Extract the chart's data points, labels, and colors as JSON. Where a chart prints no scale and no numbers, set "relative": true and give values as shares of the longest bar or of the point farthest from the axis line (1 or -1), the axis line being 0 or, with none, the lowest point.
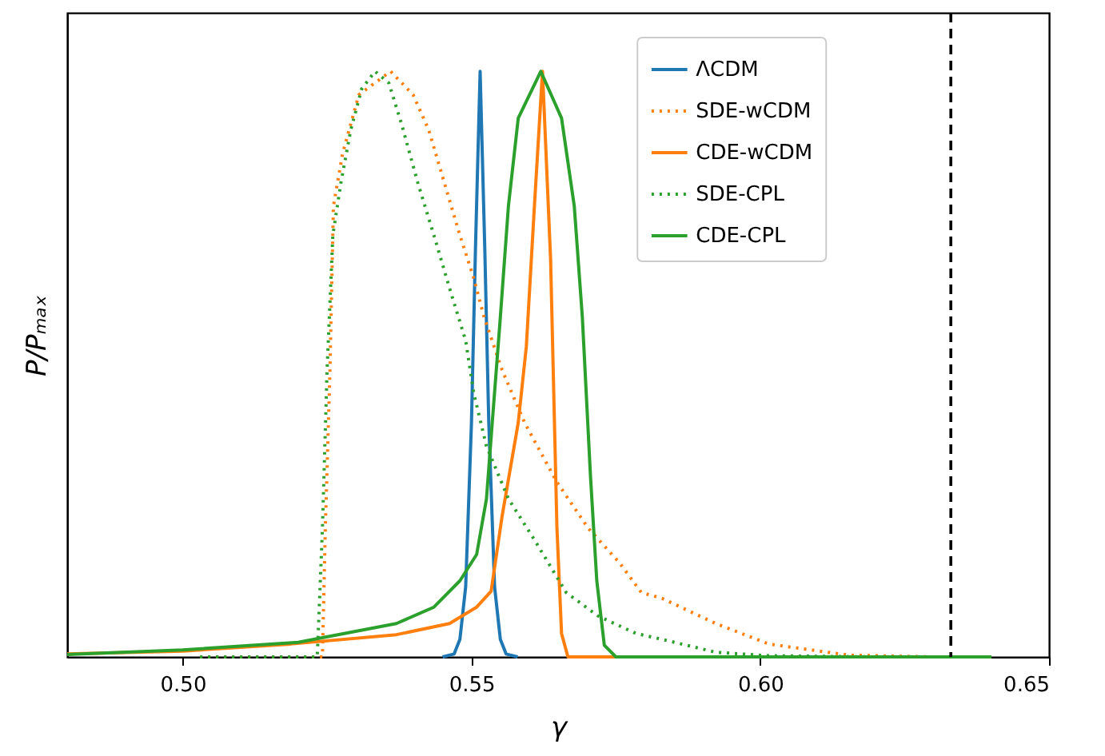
{
  "chart_data": {
    "type": "line",
    "relative": true,
    "xlabel": "γ",
    "ylabel": "P/Pₘₐₓ",
    "xlim": [
      0.48,
      0.65
    ],
    "xticks": [
      {
        "value": 0.5,
        "label": "0.50"
      },
      {
        "value": 0.55,
        "label": "0.55"
      },
      {
        "value": 0.6,
        "label": "0.60"
      },
      {
        "value": 0.65,
        "label": "0.65"
      }
    ],
    "grid": false,
    "legend": "top right",
    "marker": "none",
    "ref_lines": [
      {
        "axis": "x",
        "value": 0.633,
        "color": "#000000",
        "line_style": "dashed"
      }
    ],
    "series": [
      {
        "name": "ΛCDM",
        "color": "#1f77b4",
        "line_style": "solid",
        "x": [
          0.545,
          0.547,
          0.548,
          0.549,
          0.55,
          0.5507,
          0.5515,
          0.5523,
          0.553,
          0.554,
          0.555,
          0.556,
          0.558
        ],
        "values": [
          0,
          0.005,
          0.03,
          0.12,
          0.4,
          0.7,
          1.0,
          0.7,
          0.4,
          0.12,
          0.03,
          0.005,
          0
        ]
      },
      {
        "name": "SDE-wCDM",
        "color": "#ff7f0e",
        "line_style": "dotted",
        "x": [
          0.503,
          0.5242,
          0.5247,
          0.5255,
          0.5261,
          0.5277,
          0.5305,
          0.536,
          0.5399,
          0.5426,
          0.5453,
          0.548,
          0.5503,
          0.5522,
          0.5553,
          0.5592,
          0.5647,
          0.5702,
          0.5757,
          0.5794,
          0.583,
          0.5923,
          0.6015,
          0.6153,
          0.63,
          0.64
        ],
        "values": [
          0,
          0,
          0.22,
          0.49,
          0.77,
          0.86,
          0.96,
          1.0,
          0.96,
          0.9,
          0.81,
          0.72,
          0.65,
          0.58,
          0.49,
          0.4,
          0.3,
          0.22,
          0.16,
          0.11,
          0.1,
          0.057,
          0.022,
          0.003,
          0,
          0
        ]
      },
      {
        "name": "CDE-wCDM",
        "color": "#ff7f0e",
        "line_style": "solid",
        "x": [
          0.48,
          0.5,
          0.5187,
          0.537,
          0.5462,
          0.5509,
          0.5534,
          0.5553,
          0.5581,
          0.5595,
          0.5609,
          0.5623,
          0.5637,
          0.5648,
          0.5656,
          0.5667,
          0.58,
          0.64
        ],
        "values": [
          0.005,
          0.01,
          0.022,
          0.038,
          0.057,
          0.085,
          0.112,
          0.24,
          0.4,
          0.53,
          0.77,
          1.0,
          0.68,
          0.22,
          0.04,
          0,
          0,
          0
        ]
      },
      {
        "name": "SDE-CPL",
        "color": "#2ca02c",
        "line_style": "dotted",
        "x": [
          0.503,
          0.5222,
          0.5233,
          0.5242,
          0.525,
          0.526,
          0.5274,
          0.5291,
          0.531,
          0.5333,
          0.5357,
          0.5379,
          0.5407,
          0.5435,
          0.5462,
          0.549,
          0.5504,
          0.5526,
          0.5564,
          0.5609,
          0.5664,
          0.5719,
          0.5785,
          0.583,
          0.5923,
          0.6015,
          0.62,
          0.64
        ],
        "values": [
          0,
          0,
          0,
          0.22,
          0.49,
          0.72,
          0.81,
          0.9,
          0.97,
          1.0,
          0.98,
          0.91,
          0.81,
          0.72,
          0.63,
          0.54,
          0.45,
          0.36,
          0.27,
          0.2,
          0.11,
          0.07,
          0.04,
          0.03,
          0.008,
          0.002,
          0,
          0
        ]
      },
      {
        "name": "CDE-CPL",
        "color": "#2ca02c",
        "line_style": "solid",
        "x": [
          0.48,
          0.5,
          0.52,
          0.537,
          0.5435,
          0.548,
          0.5509,
          0.5526,
          0.5536,
          0.555,
          0.5564,
          0.5581,
          0.562,
          0.5656,
          0.5678,
          0.5692,
          0.5706,
          0.5717,
          0.573,
          0.575,
          0.64
        ],
        "values": [
          0.004,
          0.012,
          0.025,
          0.057,
          0.085,
          0.13,
          0.175,
          0.27,
          0.4,
          0.58,
          0.77,
          0.92,
          1.0,
          0.92,
          0.77,
          0.58,
          0.31,
          0.13,
          0.02,
          0,
          0
        ]
      }
    ]
  }
}
